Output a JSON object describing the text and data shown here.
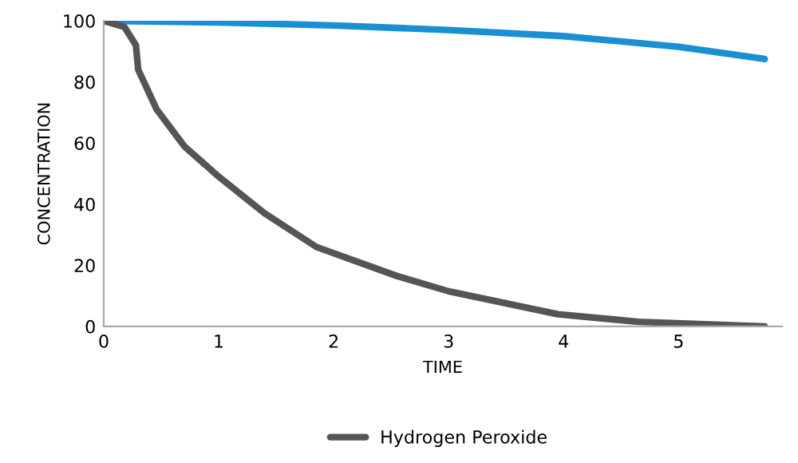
{
  "chart_data": {
    "type": "line",
    "xlabel": "TIME",
    "ylabel": "CONCENTRATION",
    "xlim": [
      0,
      5.9
    ],
    "xticks": [
      0,
      1,
      2,
      3,
      4,
      5
    ],
    "ylim": [
      0,
      100
    ],
    "yticks": [
      0,
      20,
      40,
      60,
      80,
      100
    ],
    "grid": false,
    "legend": "bottom",
    "marker": "none",
    "line_style": "solid",
    "series": [
      {
        "color": "#1a8fd3",
        "x": [
          0,
          1,
          2,
          3,
          4,
          5,
          5.75
        ],
        "values": [
          100,
          99.5,
          98.5,
          97,
          95,
          91.5,
          87.5
        ]
      },
      {
        "name": "Hydrogen Peroxide",
        "color": "#555555",
        "x": [
          0,
          0.18,
          0.28,
          0.3,
          0.46,
          0.7,
          1.0,
          1.4,
          1.85,
          2.55,
          3,
          3.95,
          4.65,
          5.75
        ],
        "values": [
          100,
          98,
          92,
          84,
          71,
          59,
          49,
          37,
          26,
          16.5,
          11.5,
          4,
          1.5,
          0
        ]
      }
    ]
  }
}
